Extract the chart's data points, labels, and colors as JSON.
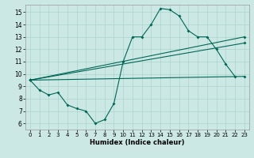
{
  "xlabel": "Humidex (Indice chaleur)",
  "bg_color": "#cce8e4",
  "grid_color": "#aad4cc",
  "line_color": "#006655",
  "xlim": [
    -0.5,
    23.5
  ],
  "ylim": [
    5.5,
    15.6
  ],
  "xticks": [
    0,
    1,
    2,
    3,
    4,
    5,
    6,
    7,
    8,
    9,
    10,
    11,
    12,
    13,
    14,
    15,
    16,
    17,
    18,
    19,
    20,
    21,
    22,
    23
  ],
  "yticks": [
    6,
    7,
    8,
    9,
    10,
    11,
    12,
    13,
    14,
    15
  ],
  "main_series": {
    "x": [
      0,
      1,
      2,
      3,
      4,
      5,
      6,
      7,
      8,
      9,
      10,
      11,
      12,
      13,
      14,
      15,
      16,
      17,
      18,
      19,
      20,
      21,
      22
    ],
    "y": [
      9.5,
      8.7,
      8.3,
      8.5,
      7.5,
      7.2,
      7.0,
      6.0,
      6.3,
      7.6,
      11.0,
      13.0,
      13.0,
      14.0,
      15.3,
      15.2,
      14.7,
      13.5,
      13.0,
      13.0,
      12.0,
      10.8,
      9.8
    ]
  },
  "straight_lines": [
    {
      "x": [
        0,
        23
      ],
      "y": [
        9.5,
        9.8
      ]
    },
    {
      "x": [
        0,
        23
      ],
      "y": [
        9.5,
        13.0
      ]
    },
    {
      "x": [
        0,
        23
      ],
      "y": [
        9.5,
        12.5
      ]
    }
  ]
}
